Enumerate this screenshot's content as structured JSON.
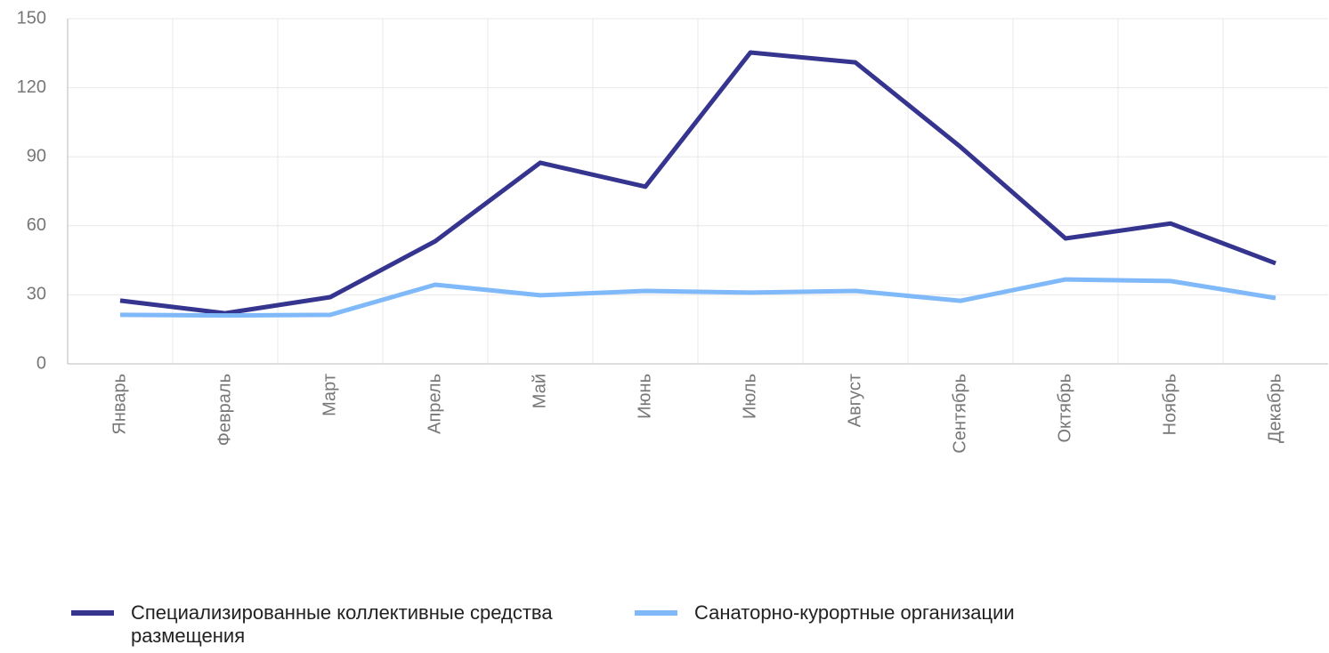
{
  "chart_data": {
    "type": "line",
    "categories": [
      "Январь",
      "Февраль",
      "Март",
      "Апрель",
      "Май",
      "Июнь",
      "Июль",
      "Август",
      "Сентябрь",
      "Октябрь",
      "Ноябрь",
      "Декабрь"
    ],
    "series": [
      {
        "name": "Специализированные коллективные средства размещения",
        "color": "#35348f",
        "values": [
          27.5,
          22,
          29,
          53.3,
          87.4,
          77,
          135.3,
          131,
          94.3,
          54.5,
          61,
          43.7
        ]
      },
      {
        "name": "Санаторно-курортные организации",
        "color": "#7fb9f9",
        "values": [
          21.3,
          21,
          21.3,
          34.4,
          29.8,
          31.7,
          31,
          31.7,
          27.4,
          36.7,
          36,
          28.6
        ]
      }
    ],
    "ylim": [
      0,
      150
    ],
    "yticks": [
      0,
      30,
      60,
      90,
      120,
      150
    ],
    "grid": true,
    "legend": "bottom"
  }
}
